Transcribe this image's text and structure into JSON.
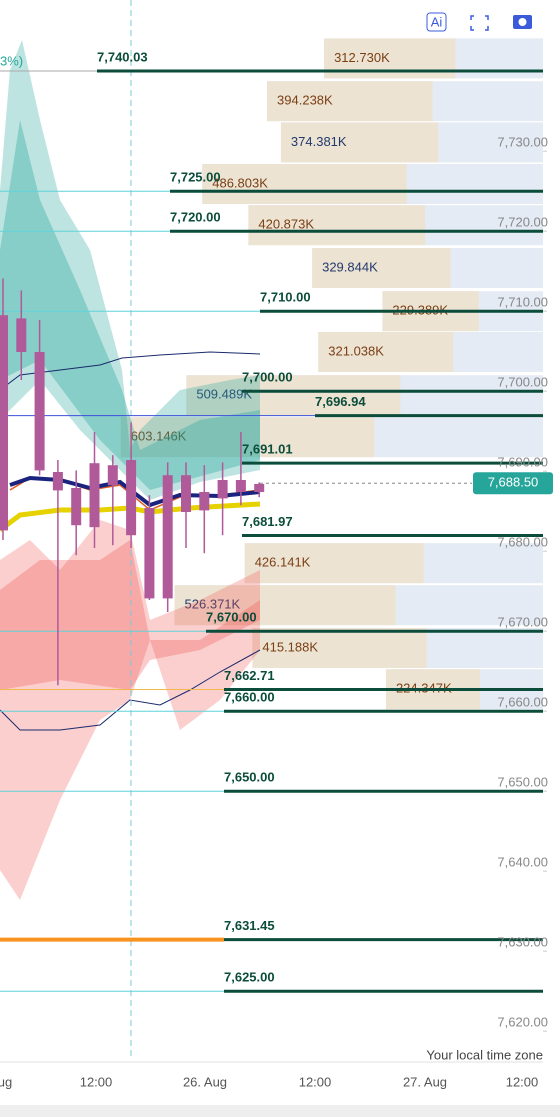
{
  "toolbar": {
    "ai": "Ai"
  },
  "chart_data": {
    "type": "candlestick",
    "title_fragment": "3%)",
    "open": [
      7709.5,
      7709.1,
      7704.9,
      7689.9,
      7687.9,
      7691.0,
      7690.75,
      7691.4,
      7685.4,
      7689.5,
      7689.5,
      7687.4,
      7688.9,
      7688.9,
      7688.4
    ],
    "high": [
      7714.1,
      7712.6,
      7708.9,
      7691.4,
      7690.1,
      7694.9,
      7692.0,
      7696.1,
      7687.0,
      7691.1,
      7691.1,
      7690.75,
      7691.1,
      7694.9,
      7688.6
    ],
    "low": [
      7681.4,
      7701.4,
      7689.5,
      7663.25,
      7679.5,
      7680.4,
      7680.75,
      7680.4,
      7673.9,
      7672.4,
      7680.4,
      7679.75,
      7682.0,
      7685.75,
      7686.75
    ],
    "close": [
      7682.6,
      7704.9,
      7690.1,
      7687.6,
      7683.25,
      7683.0,
      7688.25,
      7682.0,
      7674.1,
      7674.1,
      7684.9,
      7685.1,
      7686.6,
      7687.4,
      7687.4
    ],
    "color": "#b05a9a",
    "ylim": [
      7616.4,
      7748.9
    ],
    "yticks": [
      {
        "value": 7730,
        "label": "7,730.00"
      },
      {
        "value": 7720,
        "label": "7,720.00"
      },
      {
        "value": 7710,
        "label": "7,710.00"
      },
      {
        "value": 7700,
        "label": "7,700.00"
      },
      {
        "value": 7690,
        "label": "7,690.00"
      },
      {
        "value": 7680,
        "label": "7,680.00"
      },
      {
        "value": 7670,
        "label": "7,670.00"
      },
      {
        "value": 7660,
        "label": "7,660.00"
      },
      {
        "value": 7650,
        "label": "7,650.00"
      },
      {
        "value": 7640,
        "label": "7,640.00"
      },
      {
        "value": 7630,
        "label": "7,630.00"
      },
      {
        "value": 7620,
        "label": "7,620.00"
      }
    ],
    "x_labels": [
      "ug",
      "12:00",
      "26. Aug",
      "12:00",
      "27. Aug",
      "12:00"
    ],
    "levels": [
      {
        "value": 7740.03,
        "label": "7,740.03"
      },
      {
        "value": 7725,
        "label": "7,725.00"
      },
      {
        "value": 7720,
        "label": "7,720.00"
      },
      {
        "value": 7710,
        "label": "7,710.00"
      },
      {
        "value": 7700,
        "label": "7,700.00"
      },
      {
        "value": 7696.94,
        "label": "7,696.94"
      },
      {
        "value": 7691.01,
        "label": "7,691.01"
      },
      {
        "value": 7681.97,
        "label": "7,681.97"
      },
      {
        "value": 7670,
        "label": "7,670.00"
      },
      {
        "value": 7662.71,
        "label": "7,662.71"
      },
      {
        "value": 7660,
        "label": "7,660.00"
      },
      {
        "value": 7650,
        "label": "7,650.00"
      },
      {
        "value": 7631.45,
        "label": "7,631.45"
      },
      {
        "value": 7625,
        "label": "7,625.00"
      }
    ],
    "profile": {
      "prices": [
        7741.6,
        7736.25,
        7731.1,
        7725.9,
        7720.75,
        7715.4,
        7710,
        7704.9,
        7699.5,
        7694.25,
        7678.5,
        7673.25,
        7667.9,
        7662.75
      ],
      "values": [
        312.73,
        394.238,
        374.381,
        486.803,
        420.873,
        329.844,
        229.389,
        321.038,
        509.489,
        603.146,
        426.141,
        526.371,
        415.188,
        224.347
      ],
      "value_labels": [
        "312.730K",
        "394.238K",
        "374.381K",
        "486.803K",
        "420.873K",
        "329.844K",
        "229.389K",
        "321.038K",
        "509.489K",
        "603.146K",
        "426.141K",
        "526.371K",
        "415.188K",
        "224.347K"
      ]
    },
    "last_price": {
      "value": 7688.5,
      "label": "7,688.50"
    },
    "timezone_note": "Your local time zone"
  }
}
